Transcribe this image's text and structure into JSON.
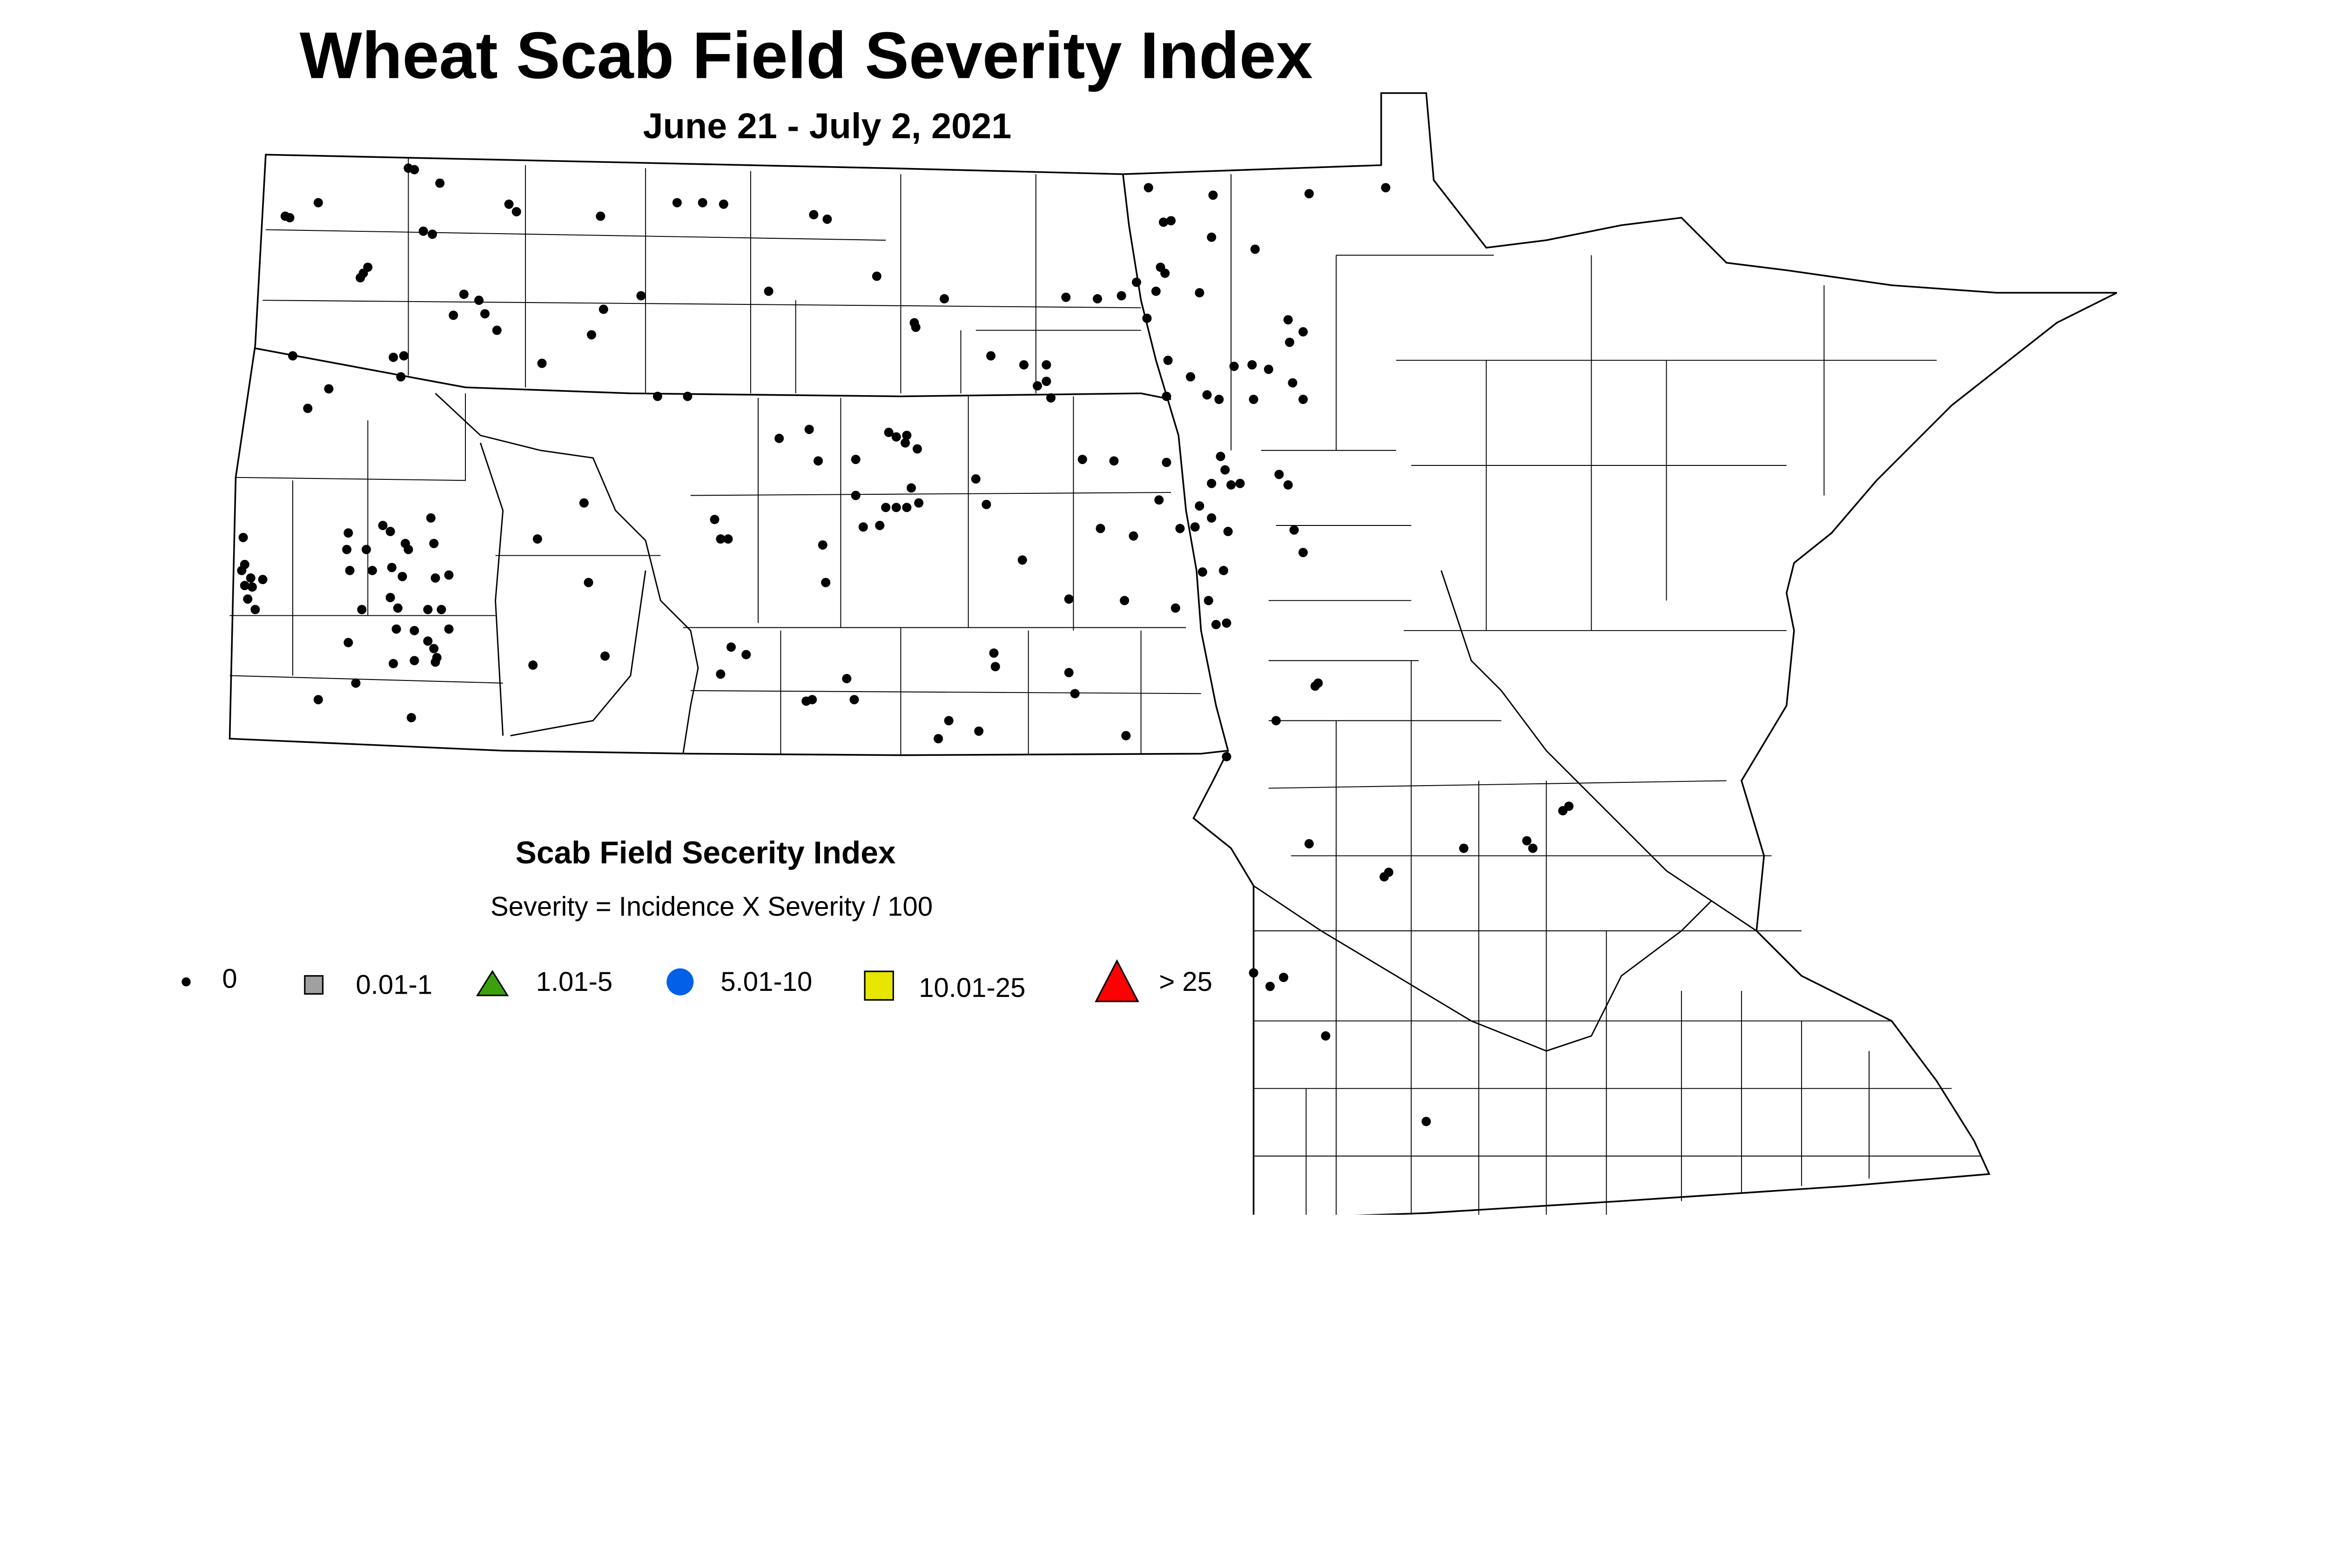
{
  "title": "Wheat Scab Field Severity Index",
  "subtitle": "June 21 - July 2, 2021",
  "legend": {
    "title": "Scab Field Secerity Index",
    "formula": "Severity = Incidence X Severity / 100",
    "items": [
      {
        "label": "0",
        "symbol": "small-dot",
        "color": "#000000"
      },
      {
        "label": "0.01-1",
        "symbol": "square",
        "color": "#a0a0a0"
      },
      {
        "label": "1.01-5",
        "symbol": "triangle",
        "color": "#3aa10a"
      },
      {
        "label": "5.01-10",
        "symbol": "circle",
        "color": "#0060e8"
      },
      {
        "label": "10.01-25",
        "symbol": "square",
        "color": "#e6e600"
      },
      {
        "label": "> 25",
        "symbol": "triangle",
        "color": "#ff0000"
      }
    ]
  },
  "map": {
    "region": "North Dakota, South Dakota, Minnesota (county boundaries)",
    "observed_category": "0"
  }
}
